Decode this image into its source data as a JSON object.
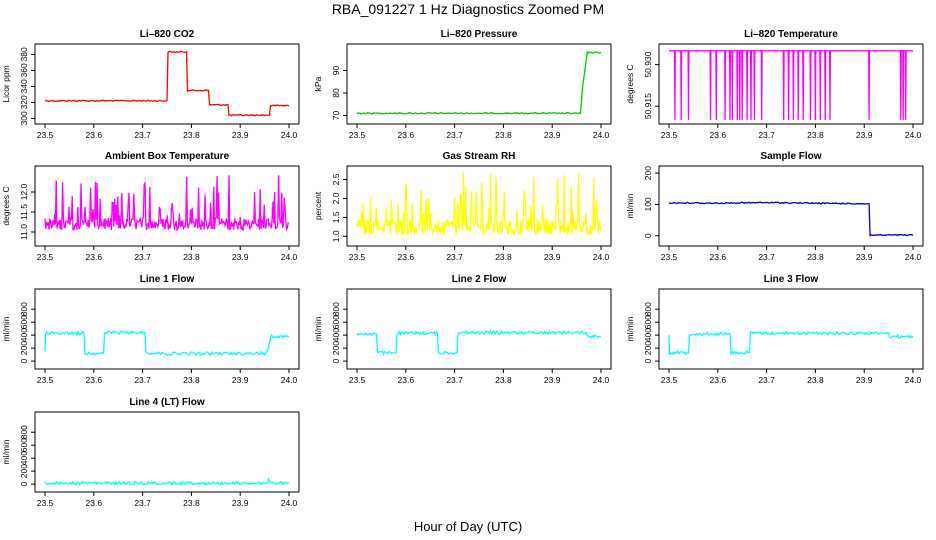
{
  "page": {
    "title": "RBA_091227  1 Hz Diagnostics Zoomed PM",
    "xlabel": "Hour of Day (UTC)"
  },
  "chart_data": [
    {
      "type": "line",
      "title": "Li–820 CO2",
      "ylabel": "Licor ppm",
      "color": "#ff0000",
      "xlim": [
        23.5,
        24.0
      ],
      "ylim": [
        298,
        388
      ],
      "xticks": [
        "23.5",
        "23.6",
        "23.7",
        "23.8",
        "23.9",
        "24.0"
      ],
      "yticks": [
        300,
        320,
        340,
        360,
        380
      ],
      "x": [
        23.5,
        23.75,
        23.752,
        23.79,
        23.792,
        23.835,
        23.837,
        23.875,
        23.877,
        23.96,
        23.962,
        24.0
      ],
      "y": [
        322,
        322,
        383,
        383,
        335,
        335,
        317,
        317,
        304,
        304,
        316,
        316
      ]
    },
    {
      "type": "line",
      "title": "Li–820 Pressure",
      "ylabel": "kPa",
      "color": "#00cc00",
      "xlim": [
        23.5,
        24.0
      ],
      "ylim": [
        68,
        100
      ],
      "xticks": [
        "23.5",
        "23.6",
        "23.7",
        "23.8",
        "23.9",
        "24.0"
      ],
      "yticks": [
        70,
        80,
        90
      ],
      "x": [
        23.5,
        23.95,
        23.958,
        23.962,
        23.968,
        23.972,
        23.98,
        24.0
      ],
      "y": [
        71,
        71,
        71,
        82,
        92,
        98,
        98,
        98
      ]
    },
    {
      "type": "line",
      "title": "Li–820 Temperature",
      "ylabel": "degrees C",
      "color": "#ff00ff",
      "xlim": [
        23.5,
        24.0
      ],
      "ylim": [
        50.91,
        50.936
      ],
      "xticks": [
        "23.5",
        "23.6",
        "23.7",
        "23.8",
        "23.9",
        "24.0"
      ],
      "yticks": [
        "50.915",
        "50.930"
      ],
      "baseline": 50.935,
      "low": 50.91,
      "spike_x": [
        23.512,
        23.525,
        23.54,
        23.585,
        23.597,
        23.615,
        23.625,
        23.63,
        23.64,
        23.645,
        23.65,
        23.66,
        23.668,
        23.675,
        23.69,
        23.735,
        23.745,
        23.755,
        23.765,
        23.775,
        23.79,
        23.8,
        23.81,
        23.82,
        23.83,
        23.91,
        23.975,
        23.98,
        23.985
      ]
    },
    {
      "type": "line",
      "title": "Ambient Box Temperature",
      "ylabel": "degrees C",
      "color": "#ff00ff",
      "xlim": [
        23.5,
        24.0
      ],
      "ylim": [
        10.75,
        12.55
      ],
      "xticks": [
        "23.5",
        "23.6",
        "23.7",
        "23.8",
        "23.9",
        "24.0"
      ],
      "yticks": [
        "11.0",
        "11.5",
        "12.0"
      ],
      "noise": {
        "base": 11.05,
        "mid": 11.2,
        "max": 12.5
      }
    },
    {
      "type": "line",
      "title": "Gas Stream RH",
      "ylabel": "percent",
      "color": "#ffff00",
      "xlim": [
        23.5,
        24.0
      ],
      "ylim": [
        0.85,
        2.75
      ],
      "xticks": [
        "23.5",
        "23.6",
        "23.7",
        "23.8",
        "23.9",
        "24.0"
      ],
      "yticks": [
        "1.0",
        "1.5",
        "2.0",
        "2.5"
      ],
      "noise": {
        "base": 1.05,
        "mid": 1.25,
        "max": 2.7
      }
    },
    {
      "type": "line",
      "title": "Sample Flow",
      "ylabel": "ml/min",
      "color": "#0000cc",
      "xlim": [
        23.5,
        24.0
      ],
      "ylim": [
        -20,
        210
      ],
      "xticks": [
        "23.5",
        "23.6",
        "23.7",
        "23.8",
        "23.9",
        "24.0"
      ],
      "yticks": [
        0,
        100,
        200
      ],
      "x": [
        23.5,
        23.6,
        23.7,
        23.8,
        23.91,
        23.912,
        24.0
      ],
      "y": [
        105,
        104,
        106,
        104,
        102,
        2,
        2
      ]
    },
    {
      "type": "line",
      "title": "Line 1 Flow",
      "ylabel": "ml/min",
      "color": "#00ffff",
      "xlim": [
        23.5,
        24.0
      ],
      "ylim": [
        -60,
        1050
      ],
      "xticks": [
        "23.5",
        "23.6",
        "23.7",
        "23.8",
        "23.9",
        "24.0"
      ],
      "yticks": [
        0,
        200,
        400,
        600,
        800
      ],
      "x": [
        23.5,
        23.501,
        23.58,
        23.582,
        23.62,
        23.622,
        23.705,
        23.707,
        23.75,
        23.955,
        23.962,
        24.0
      ],
      "y": [
        150,
        430,
        430,
        120,
        120,
        440,
        440,
        130,
        115,
        120,
        380,
        380
      ]
    },
    {
      "type": "line",
      "title": "Line 2 Flow",
      "ylabel": "ml/min",
      "color": "#00ffff",
      "xlim": [
        23.5,
        24.0
      ],
      "ylim": [
        -60,
        1050
      ],
      "xticks": [
        "23.5",
        "23.6",
        "23.7",
        "23.8",
        "23.9",
        "24.0"
      ],
      "yticks": [
        0,
        200,
        400,
        600,
        800
      ],
      "x": [
        23.5,
        23.54,
        23.542,
        23.58,
        23.582,
        23.665,
        23.667,
        23.705,
        23.707,
        23.97,
        23.972,
        24.0
      ],
      "y": [
        420,
        420,
        130,
        130,
        430,
        430,
        130,
        130,
        440,
        440,
        380,
        380
      ]
    },
    {
      "type": "line",
      "title": "Line 3 Flow",
      "ylabel": "ml/min",
      "color": "#00ffff",
      "xlim": [
        23.5,
        24.0
      ],
      "ylim": [
        -60,
        1050
      ],
      "xticks": [
        "23.5",
        "23.6",
        "23.7",
        "23.8",
        "23.9",
        "24.0"
      ],
      "yticks": [
        0,
        200,
        400,
        600,
        800
      ],
      "x": [
        23.5,
        23.501,
        23.54,
        23.542,
        23.625,
        23.627,
        23.665,
        23.667,
        23.95,
        23.952,
        24.0
      ],
      "y": [
        400,
        130,
        130,
        420,
        420,
        130,
        130,
        430,
        430,
        380,
        380
      ]
    },
    {
      "type": "line",
      "title": "Line 4 (LT) Flow",
      "ylabel": "ml/min",
      "color": "#00ffff",
      "xlim": [
        23.5,
        24.0
      ],
      "ylim": [
        -60,
        1050
      ],
      "xticks": [
        "23.5",
        "23.6",
        "23.7",
        "23.8",
        "23.9",
        "24.0"
      ],
      "yticks": [
        0,
        200,
        400,
        600,
        800
      ],
      "x": [
        23.5,
        23.95,
        23.955,
        23.958,
        23.962,
        24.0
      ],
      "y": [
        15,
        15,
        15,
        80,
        15,
        15
      ]
    }
  ]
}
